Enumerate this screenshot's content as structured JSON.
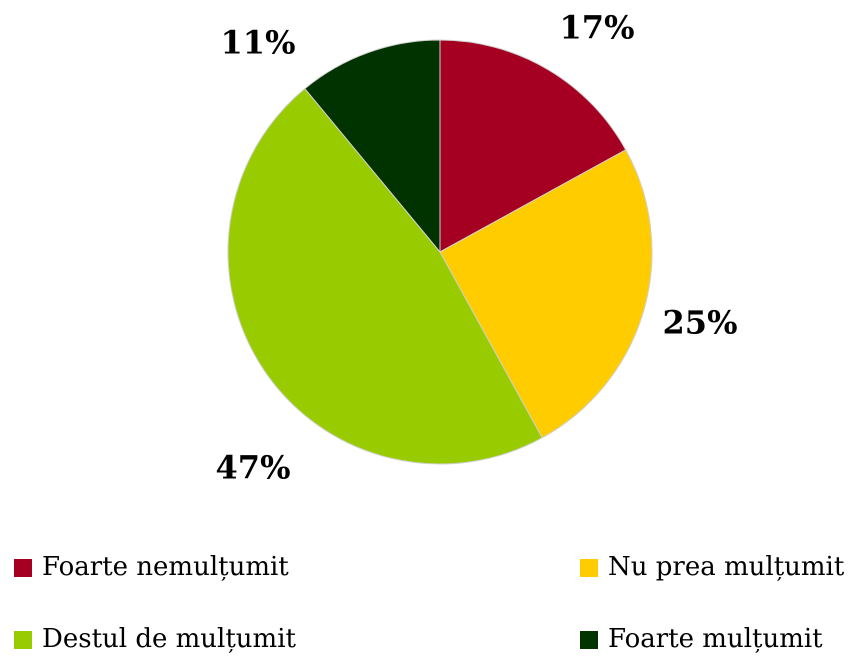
{
  "chart_data": {
    "type": "pie",
    "categories": [
      "Foarte nemulțumit",
      "Nu prea mulțumit",
      "Destul de mulțumit",
      "Foarte mulțumit"
    ],
    "values": [
      17,
      25,
      47,
      11
    ],
    "value_labels": [
      "17%",
      "25%",
      "47%",
      "11%"
    ],
    "colors": [
      "#a50021",
      "#ffcc00",
      "#99cc00",
      "#003300"
    ]
  }
}
